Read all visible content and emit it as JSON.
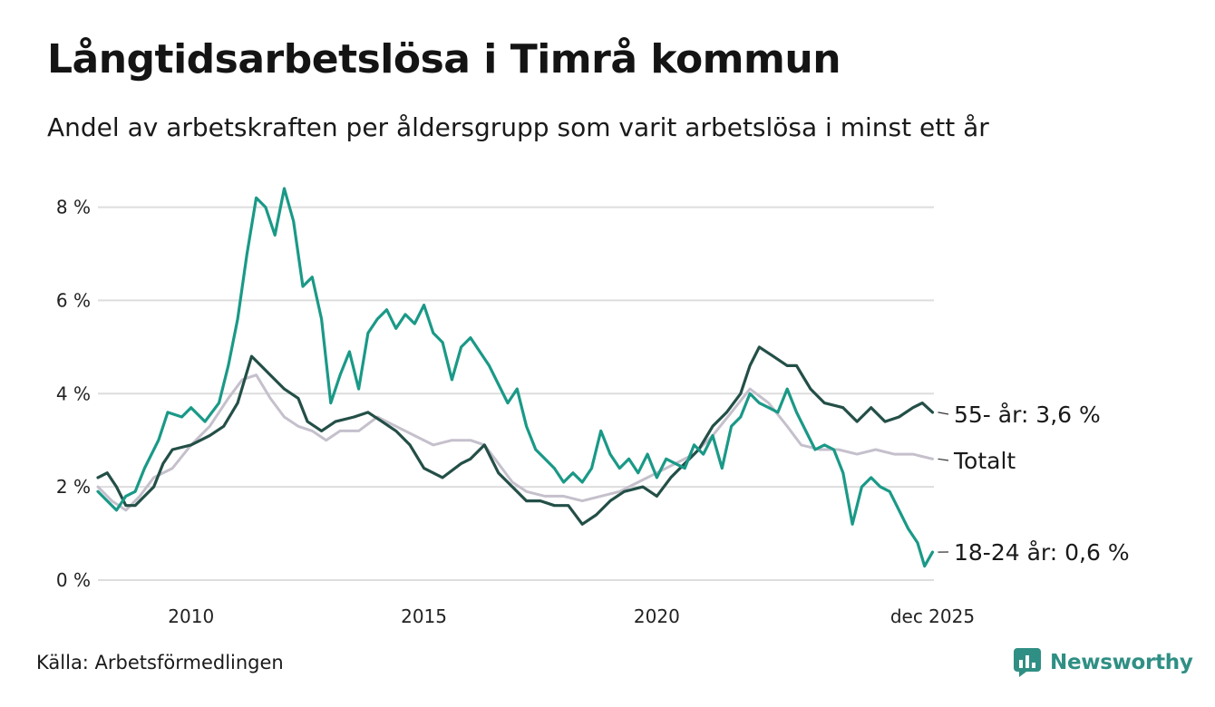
{
  "title": "Långtidsarbetslösa i Timrå kommun",
  "subtitle": "Andel av arbetskraften per åldersgrupp som varit arbetslösa i minst ett år",
  "source": "Källa: Arbetsförmedlingen",
  "brand": "Newsworthy",
  "colors": {
    "youth": "#1a9987",
    "older": "#234f47",
    "total": "#c5c0cc",
    "grid": "#dddddd",
    "brand": "#2f8f84"
  },
  "chart_data": {
    "type": "line",
    "title": "Långtidsarbetslösa i Timrå kommun",
    "xlabel": "",
    "ylabel": "",
    "xlim": [
      2008.0,
      2025.95
    ],
    "ylim": [
      0,
      8.4
    ],
    "y_ticks": [
      {
        "value": 0,
        "label": "0 %"
      },
      {
        "value": 2,
        "label": "2 %"
      },
      {
        "value": 4,
        "label": "4 %"
      },
      {
        "value": 6,
        "label": "6 %"
      },
      {
        "value": 8,
        "label": "8 %"
      }
    ],
    "x_ticks": [
      {
        "value": 2010,
        "label": "2010"
      },
      {
        "value": 2015,
        "label": "2015"
      },
      {
        "value": 2020,
        "label": "2020"
      },
      {
        "value": 2025.92,
        "label": "dec 2025"
      }
    ],
    "series": [
      {
        "name": "Totalt",
        "key": "total",
        "end_label": "Totalt",
        "points": [
          [
            2008.0,
            2.0
          ],
          [
            2008.3,
            1.7
          ],
          [
            2008.6,
            1.5
          ],
          [
            2008.9,
            1.8
          ],
          [
            2009.2,
            2.2
          ],
          [
            2009.6,
            2.4
          ],
          [
            2010.0,
            2.9
          ],
          [
            2010.4,
            3.3
          ],
          [
            2010.8,
            3.9
          ],
          [
            2011.1,
            4.3
          ],
          [
            2011.4,
            4.4
          ],
          [
            2011.7,
            3.9
          ],
          [
            2012.0,
            3.5
          ],
          [
            2012.3,
            3.3
          ],
          [
            2012.6,
            3.2
          ],
          [
            2012.9,
            3.0
          ],
          [
            2013.2,
            3.2
          ],
          [
            2013.6,
            3.2
          ],
          [
            2014.0,
            3.5
          ],
          [
            2014.4,
            3.3
          ],
          [
            2014.8,
            3.1
          ],
          [
            2015.2,
            2.9
          ],
          [
            2015.6,
            3.0
          ],
          [
            2016.0,
            3.0
          ],
          [
            2016.3,
            2.9
          ],
          [
            2016.6,
            2.5
          ],
          [
            2016.9,
            2.1
          ],
          [
            2017.2,
            1.9
          ],
          [
            2017.6,
            1.8
          ],
          [
            2018.0,
            1.8
          ],
          [
            2018.4,
            1.7
          ],
          [
            2018.8,
            1.8
          ],
          [
            2019.2,
            1.9
          ],
          [
            2019.6,
            2.1
          ],
          [
            2020.0,
            2.3
          ],
          [
            2020.4,
            2.5
          ],
          [
            2020.8,
            2.7
          ],
          [
            2021.2,
            3.1
          ],
          [
            2021.6,
            3.6
          ],
          [
            2022.0,
            4.1
          ],
          [
            2022.4,
            3.8
          ],
          [
            2022.8,
            3.3
          ],
          [
            2023.1,
            2.9
          ],
          [
            2023.5,
            2.8
          ],
          [
            2023.9,
            2.8
          ],
          [
            2024.3,
            2.7
          ],
          [
            2024.7,
            2.8
          ],
          [
            2025.1,
            2.7
          ],
          [
            2025.5,
            2.7
          ],
          [
            2025.92,
            2.6
          ]
        ]
      },
      {
        "name": "55- år",
        "key": "older",
        "end_label": "55- år: 3,6 %",
        "points": [
          [
            2008.0,
            2.2
          ],
          [
            2008.2,
            2.3
          ],
          [
            2008.4,
            2.0
          ],
          [
            2008.6,
            1.6
          ],
          [
            2008.8,
            1.6
          ],
          [
            2009.0,
            1.8
          ],
          [
            2009.2,
            2.0
          ],
          [
            2009.4,
            2.5
          ],
          [
            2009.6,
            2.8
          ],
          [
            2010.0,
            2.9
          ],
          [
            2010.4,
            3.1
          ],
          [
            2010.7,
            3.3
          ],
          [
            2011.0,
            3.8
          ],
          [
            2011.3,
            4.8
          ],
          [
            2011.5,
            4.6
          ],
          [
            2011.7,
            4.4
          ],
          [
            2012.0,
            4.1
          ],
          [
            2012.3,
            3.9
          ],
          [
            2012.5,
            3.4
          ],
          [
            2012.8,
            3.2
          ],
          [
            2013.1,
            3.4
          ],
          [
            2013.5,
            3.5
          ],
          [
            2013.8,
            3.6
          ],
          [
            2014.1,
            3.4
          ],
          [
            2014.4,
            3.2
          ],
          [
            2014.7,
            2.9
          ],
          [
            2015.0,
            2.4
          ],
          [
            2015.4,
            2.2
          ],
          [
            2015.8,
            2.5
          ],
          [
            2016.0,
            2.6
          ],
          [
            2016.3,
            2.9
          ],
          [
            2016.6,
            2.3
          ],
          [
            2016.9,
            2.0
          ],
          [
            2017.2,
            1.7
          ],
          [
            2017.5,
            1.7
          ],
          [
            2017.8,
            1.6
          ],
          [
            2018.1,
            1.6
          ],
          [
            2018.4,
            1.2
          ],
          [
            2018.7,
            1.4
          ],
          [
            2019.0,
            1.7
          ],
          [
            2019.3,
            1.9
          ],
          [
            2019.7,
            2.0
          ],
          [
            2020.0,
            1.8
          ],
          [
            2020.3,
            2.2
          ],
          [
            2020.6,
            2.5
          ],
          [
            2020.9,
            2.8
          ],
          [
            2021.2,
            3.3
          ],
          [
            2021.5,
            3.6
          ],
          [
            2021.8,
            4.0
          ],
          [
            2022.0,
            4.6
          ],
          [
            2022.2,
            5.0
          ],
          [
            2022.5,
            4.8
          ],
          [
            2022.8,
            4.6
          ],
          [
            2023.0,
            4.6
          ],
          [
            2023.3,
            4.1
          ],
          [
            2023.6,
            3.8
          ],
          [
            2024.0,
            3.7
          ],
          [
            2024.3,
            3.4
          ],
          [
            2024.6,
            3.7
          ],
          [
            2024.9,
            3.4
          ],
          [
            2025.2,
            3.5
          ],
          [
            2025.5,
            3.7
          ],
          [
            2025.7,
            3.8
          ],
          [
            2025.92,
            3.6
          ]
        ]
      },
      {
        "name": "18-24 år",
        "key": "youth",
        "end_label": "18-24 år: 0,6 %",
        "points": [
          [
            2008.0,
            1.9
          ],
          [
            2008.2,
            1.7
          ],
          [
            2008.4,
            1.5
          ],
          [
            2008.6,
            1.8
          ],
          [
            2008.8,
            1.9
          ],
          [
            2009.0,
            2.4
          ],
          [
            2009.3,
            3.0
          ],
          [
            2009.5,
            3.6
          ],
          [
            2009.8,
            3.5
          ],
          [
            2010.0,
            3.7
          ],
          [
            2010.3,
            3.4
          ],
          [
            2010.6,
            3.8
          ],
          [
            2010.8,
            4.6
          ],
          [
            2011.0,
            5.6
          ],
          [
            2011.2,
            7.0
          ],
          [
            2011.4,
            8.2
          ],
          [
            2011.6,
            8.0
          ],
          [
            2011.8,
            7.4
          ],
          [
            2012.0,
            8.4
          ],
          [
            2012.2,
            7.7
          ],
          [
            2012.4,
            6.3
          ],
          [
            2012.6,
            6.5
          ],
          [
            2012.8,
            5.6
          ],
          [
            2013.0,
            3.8
          ],
          [
            2013.2,
            4.4
          ],
          [
            2013.4,
            4.9
          ],
          [
            2013.6,
            4.1
          ],
          [
            2013.8,
            5.3
          ],
          [
            2014.0,
            5.6
          ],
          [
            2014.2,
            5.8
          ],
          [
            2014.4,
            5.4
          ],
          [
            2014.6,
            5.7
          ],
          [
            2014.8,
            5.5
          ],
          [
            2015.0,
            5.9
          ],
          [
            2015.2,
            5.3
          ],
          [
            2015.4,
            5.1
          ],
          [
            2015.6,
            4.3
          ],
          [
            2015.8,
            5.0
          ],
          [
            2016.0,
            5.2
          ],
          [
            2016.2,
            4.9
          ],
          [
            2016.4,
            4.6
          ],
          [
            2016.6,
            4.2
          ],
          [
            2016.8,
            3.8
          ],
          [
            2017.0,
            4.1
          ],
          [
            2017.2,
            3.3
          ],
          [
            2017.4,
            2.8
          ],
          [
            2017.6,
            2.6
          ],
          [
            2017.8,
            2.4
          ],
          [
            2018.0,
            2.1
          ],
          [
            2018.2,
            2.3
          ],
          [
            2018.4,
            2.1
          ],
          [
            2018.6,
            2.4
          ],
          [
            2018.8,
            3.2
          ],
          [
            2019.0,
            2.7
          ],
          [
            2019.2,
            2.4
          ],
          [
            2019.4,
            2.6
          ],
          [
            2019.6,
            2.3
          ],
          [
            2019.8,
            2.7
          ],
          [
            2020.0,
            2.2
          ],
          [
            2020.2,
            2.6
          ],
          [
            2020.4,
            2.5
          ],
          [
            2020.6,
            2.4
          ],
          [
            2020.8,
            2.9
          ],
          [
            2021.0,
            2.7
          ],
          [
            2021.2,
            3.1
          ],
          [
            2021.4,
            2.4
          ],
          [
            2021.6,
            3.3
          ],
          [
            2021.8,
            3.5
          ],
          [
            2022.0,
            4.0
          ],
          [
            2022.2,
            3.8
          ],
          [
            2022.4,
            3.7
          ],
          [
            2022.6,
            3.6
          ],
          [
            2022.8,
            4.1
          ],
          [
            2023.0,
            3.6
          ],
          [
            2023.2,
            3.2
          ],
          [
            2023.4,
            2.8
          ],
          [
            2023.6,
            2.9
          ],
          [
            2023.8,
            2.8
          ],
          [
            2024.0,
            2.3
          ],
          [
            2024.2,
            1.2
          ],
          [
            2024.4,
            2.0
          ],
          [
            2024.6,
            2.2
          ],
          [
            2024.8,
            2.0
          ],
          [
            2025.0,
            1.9
          ],
          [
            2025.2,
            1.5
          ],
          [
            2025.4,
            1.1
          ],
          [
            2025.6,
            0.8
          ],
          [
            2025.75,
            0.3
          ],
          [
            2025.92,
            0.6
          ]
        ]
      }
    ]
  }
}
